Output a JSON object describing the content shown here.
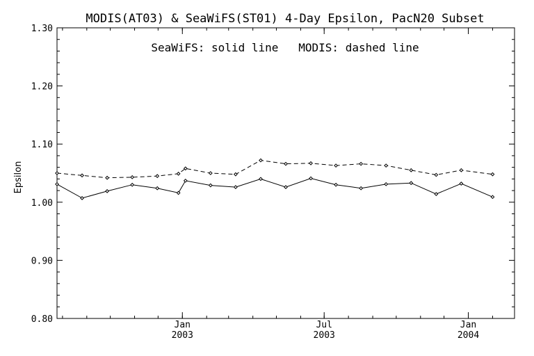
{
  "chart_data": {
    "type": "line",
    "title": "MODIS(AT03) & SeaWiFS(ST01) 4-Day Epsilon, PacN20 Subset",
    "annotation": "SeaWiFS: solid line   MODIS: dashed line",
    "ylabel": "Epsilon",
    "xlabel": "",
    "ylim": [
      0.8,
      1.3
    ],
    "yticks": [
      "0.80",
      "0.90",
      "1.00",
      "1.10",
      "1.20",
      "1.30"
    ],
    "xlim": [
      "2002-07-25",
      "2004-02-29"
    ],
    "xticks": [
      {
        "date": "2003-01-01",
        "month": "Jan",
        "year": "2003"
      },
      {
        "date": "2003-07-01",
        "month": "Jul",
        "year": "2003"
      },
      {
        "date": "2004-01-01",
        "month": "Jan",
        "year": "2004"
      }
    ],
    "x": [
      "2002-07-25",
      "2002-08-26",
      "2002-09-27",
      "2002-10-29",
      "2002-11-30",
      "2002-12-27",
      "2003-01-05",
      "2003-02-06",
      "2003-03-10",
      "2003-04-11",
      "2003-05-13",
      "2003-06-14",
      "2003-07-16",
      "2003-08-17",
      "2003-09-18",
      "2003-10-20",
      "2003-11-21",
      "2003-12-23",
      "2004-02-01"
    ],
    "series": [
      {
        "style": "solid",
        "values": [
          1.031,
          1.007,
          1.019,
          1.03,
          1.024,
          1.016,
          1.037,
          1.029,
          1.026,
          1.04,
          1.026,
          1.041,
          1.03,
          1.024,
          1.031,
          1.033,
          1.014,
          1.032,
          1.009
        ]
      },
      {
        "style": "dashed",
        "values": [
          1.05,
          1.046,
          1.042,
          1.043,
          1.045,
          1.049,
          1.058,
          1.05,
          1.048,
          1.072,
          1.066,
          1.067,
          1.063,
          1.066,
          1.063,
          1.055,
          1.047,
          1.055,
          1.048
        ]
      }
    ],
    "grid": false
  }
}
